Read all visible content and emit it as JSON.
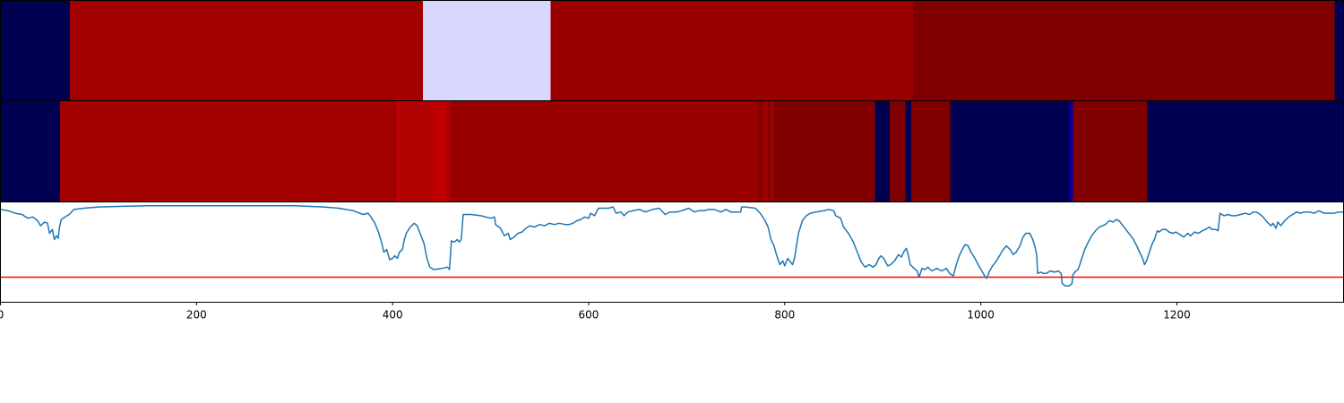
{
  "chart_data": {
    "type": "heatmap",
    "colors": {
      "navy": "#000050",
      "lavender": "#d8d8ff",
      "blue": "#0000a0",
      "red_bright": "#c00000",
      "red_light": "#b00000",
      "red": "#a30000",
      "red_mid": "#9a0000",
      "red_dark": "#800000",
      "line": "#1f77b4",
      "threshold": "#ff0000"
    },
    "x_axis": {
      "range": [
        0,
        1370
      ],
      "ticks": [
        0,
        200,
        400,
        600,
        800,
        1000,
        1200
      ],
      "tick_labels": [
        "0",
        "200",
        "400",
        "600",
        "800",
        "1000",
        "1200"
      ]
    },
    "band_top": {
      "segments": [
        {
          "start": 0,
          "end": 71,
          "color": "navy"
        },
        {
          "start": 71,
          "end": 431,
          "color": "red"
        },
        {
          "start": 431,
          "end": 561,
          "color": "lavender"
        },
        {
          "start": 561,
          "end": 931,
          "color": "red_mid"
        },
        {
          "start": 931,
          "end": 1361,
          "color": "red_dark"
        },
        {
          "start": 1361,
          "end": 1370,
          "color": "navy"
        }
      ]
    },
    "band_middle": {
      "segments": [
        {
          "start": 0,
          "end": 61,
          "color": "navy"
        },
        {
          "start": 61,
          "end": 401,
          "color": "red"
        },
        {
          "start": 401,
          "end": 404,
          "color": "red_mid"
        },
        {
          "start": 404,
          "end": 407,
          "color": "red_bright"
        },
        {
          "start": 407,
          "end": 441,
          "color": "red_light"
        },
        {
          "start": 441,
          "end": 455,
          "color": "red_bright"
        },
        {
          "start": 455,
          "end": 459,
          "color": "red_light"
        },
        {
          "start": 459,
          "end": 773,
          "color": "red_mid"
        },
        {
          "start": 773,
          "end": 777,
          "color": "red_dark"
        },
        {
          "start": 777,
          "end": 783,
          "color": "red_mid"
        },
        {
          "start": 783,
          "end": 785,
          "color": "red_dark"
        },
        {
          "start": 785,
          "end": 789,
          "color": "red_mid"
        },
        {
          "start": 789,
          "end": 892,
          "color": "red_dark"
        },
        {
          "start": 892,
          "end": 907,
          "color": "navy"
        },
        {
          "start": 907,
          "end": 923,
          "color": "red_dark"
        },
        {
          "start": 923,
          "end": 929,
          "color": "navy"
        },
        {
          "start": 929,
          "end": 969,
          "color": "red_dark"
        },
        {
          "start": 969,
          "end": 1090,
          "color": "navy"
        },
        {
          "start": 1090,
          "end": 1094,
          "color": "blue"
        },
        {
          "start": 1094,
          "end": 1170,
          "color": "red_dark"
        },
        {
          "start": 1170,
          "end": 1370,
          "color": "navy"
        }
      ]
    },
    "line_series": {
      "ylim": [
        -0.75,
        0.05
      ],
      "threshold": -0.55,
      "points": [
        [
          0,
          -0.01
        ],
        [
          8,
          -0.02
        ],
        [
          15,
          -0.04
        ],
        [
          22,
          -0.05
        ],
        [
          28,
          -0.08
        ],
        [
          33,
          -0.07
        ],
        [
          38,
          -0.1
        ],
        [
          41,
          -0.14
        ],
        [
          45,
          -0.11
        ],
        [
          48,
          -0.12
        ],
        [
          50,
          -0.2
        ],
        [
          53,
          -0.17
        ],
        [
          55,
          -0.25
        ],
        [
          57,
          -0.22
        ],
        [
          59,
          -0.24
        ],
        [
          60,
          -0.16
        ],
        [
          62,
          -0.09
        ],
        [
          66,
          -0.07
        ],
        [
          70,
          -0.05
        ],
        [
          75,
          -0.01
        ],
        [
          85,
          0.0
        ],
        [
          100,
          0.01
        ],
        [
          150,
          0.02
        ],
        [
          200,
          0.02
        ],
        [
          250,
          0.02
        ],
        [
          300,
          0.02
        ],
        [
          330,
          0.01
        ],
        [
          345,
          0.0
        ],
        [
          360,
          -0.02
        ],
        [
          370,
          -0.05
        ],
        [
          375,
          -0.04
        ],
        [
          378,
          -0.07
        ],
        [
          382,
          -0.12
        ],
        [
          386,
          -0.2
        ],
        [
          389,
          -0.28
        ],
        [
          391,
          -0.35
        ],
        [
          394,
          -0.33
        ],
        [
          397,
          -0.41
        ],
        [
          400,
          -0.4
        ],
        [
          402,
          -0.38
        ],
        [
          405,
          -0.4
        ],
        [
          407,
          -0.35
        ],
        [
          410,
          -0.33
        ],
        [
          412,
          -0.25
        ],
        [
          414,
          -0.2
        ],
        [
          418,
          -0.15
        ],
        [
          422,
          -0.12
        ],
        [
          425,
          -0.14
        ],
        [
          428,
          -0.2
        ],
        [
          432,
          -0.28
        ],
        [
          435,
          -0.4
        ],
        [
          438,
          -0.47
        ],
        [
          442,
          -0.49
        ],
        [
          450,
          -0.48
        ],
        [
          456,
          -0.47
        ],
        [
          458,
          -0.49
        ],
        [
          460,
          -0.26
        ],
        [
          463,
          -0.27
        ],
        [
          466,
          -0.25
        ],
        [
          468,
          -0.27
        ],
        [
          470,
          -0.25
        ],
        [
          472,
          -0.05
        ],
        [
          476,
          -0.05
        ],
        [
          480,
          -0.05
        ],
        [
          490,
          -0.06
        ],
        [
          500,
          -0.08
        ],
        [
          504,
          -0.07
        ],
        [
          505,
          -0.13
        ],
        [
          510,
          -0.16
        ],
        [
          514,
          -0.22
        ],
        [
          518,
          -0.2
        ],
        [
          520,
          -0.25
        ],
        [
          524,
          -0.23
        ],
        [
          528,
          -0.2
        ],
        [
          532,
          -0.19
        ],
        [
          536,
          -0.16
        ],
        [
          540,
          -0.14
        ],
        [
          545,
          -0.15
        ],
        [
          550,
          -0.13
        ],
        [
          555,
          -0.14
        ],
        [
          560,
          -0.12
        ],
        [
          565,
          -0.13
        ],
        [
          570,
          -0.12
        ],
        [
          576,
          -0.13
        ],
        [
          580,
          -0.13
        ],
        [
          584,
          -0.12
        ],
        [
          588,
          -0.1
        ],
        [
          592,
          -0.09
        ],
        [
          596,
          -0.07
        ],
        [
          600,
          -0.08
        ],
        [
          602,
          -0.04
        ],
        [
          606,
          -0.06
        ],
        [
          610,
          0.0
        ],
        [
          620,
          0.0
        ],
        [
          625,
          0.01
        ],
        [
          628,
          -0.04
        ],
        [
          633,
          -0.03
        ],
        [
          636,
          -0.06
        ],
        [
          640,
          -0.03
        ],
        [
          645,
          -0.02
        ],
        [
          652,
          -0.01
        ],
        [
          658,
          -0.03
        ],
        [
          665,
          -0.01
        ],
        [
          672,
          0.0
        ],
        [
          678,
          -0.05
        ],
        [
          683,
          -0.03
        ],
        [
          690,
          -0.03
        ],
        [
          695,
          -0.02
        ],
        [
          702,
          0.0
        ],
        [
          708,
          -0.03
        ],
        [
          712,
          -0.02
        ],
        [
          718,
          -0.02
        ],
        [
          722,
          -0.01
        ],
        [
          728,
          -0.01
        ],
        [
          735,
          -0.03
        ],
        [
          740,
          -0.01
        ],
        [
          745,
          -0.03
        ],
        [
          755,
          -0.03
        ],
        [
          756,
          0.01
        ],
        [
          760,
          0.01
        ],
        [
          770,
          0.0
        ],
        [
          775,
          -0.04
        ],
        [
          780,
          -0.1
        ],
        [
          783,
          -0.15
        ],
        [
          786,
          -0.25
        ],
        [
          789,
          -0.3
        ],
        [
          792,
          -0.38
        ],
        [
          795,
          -0.45
        ],
        [
          798,
          -0.42
        ],
        [
          800,
          -0.46
        ],
        [
          803,
          -0.4
        ],
        [
          806,
          -0.43
        ],
        [
          808,
          -0.45
        ],
        [
          810,
          -0.4
        ],
        [
          812,
          -0.3
        ],
        [
          814,
          -0.2
        ],
        [
          816,
          -0.15
        ],
        [
          818,
          -0.1
        ],
        [
          822,
          -0.06
        ],
        [
          826,
          -0.04
        ],
        [
          832,
          -0.03
        ],
        [
          840,
          -0.02
        ],
        [
          845,
          -0.01
        ],
        [
          850,
          -0.02
        ],
        [
          852,
          -0.06
        ],
        [
          857,
          -0.08
        ],
        [
          860,
          -0.15
        ],
        [
          865,
          -0.2
        ],
        [
          870,
          -0.27
        ],
        [
          874,
          -0.35
        ],
        [
          878,
          -0.43
        ],
        [
          882,
          -0.47
        ],
        [
          886,
          -0.45
        ],
        [
          890,
          -0.47
        ],
        [
          893,
          -0.45
        ],
        [
          896,
          -0.4
        ],
        [
          898,
          -0.38
        ],
        [
          901,
          -0.4
        ],
        [
          903,
          -0.43
        ],
        [
          905,
          -0.46
        ],
        [
          908,
          -0.45
        ],
        [
          912,
          -0.42
        ],
        [
          916,
          -0.37
        ],
        [
          919,
          -0.39
        ],
        [
          922,
          -0.34
        ],
        [
          924,
          -0.32
        ],
        [
          926,
          -0.37
        ],
        [
          928,
          -0.45
        ],
        [
          932,
          -0.48
        ],
        [
          935,
          -0.5
        ],
        [
          937,
          -0.55
        ],
        [
          940,
          -0.48
        ],
        [
          943,
          -0.49
        ],
        [
          946,
          -0.47
        ],
        [
          950,
          -0.5
        ],
        [
          955,
          -0.48
        ],
        [
          960,
          -0.5
        ],
        [
          965,
          -0.48
        ],
        [
          968,
          -0.52
        ],
        [
          972,
          -0.54
        ],
        [
          975,
          -0.45
        ],
        [
          978,
          -0.38
        ],
        [
          981,
          -0.33
        ],
        [
          984,
          -0.29
        ],
        [
          987,
          -0.3
        ],
        [
          990,
          -0.35
        ],
        [
          994,
          -0.4
        ],
        [
          998,
          -0.46
        ],
        [
          1001,
          -0.5
        ],
        [
          1004,
          -0.54
        ],
        [
          1006,
          -0.56
        ],
        [
          1009,
          -0.5
        ],
        [
          1012,
          -0.46
        ],
        [
          1016,
          -0.42
        ],
        [
          1019,
          -0.38
        ],
        [
          1022,
          -0.34
        ],
        [
          1026,
          -0.3
        ],
        [
          1030,
          -0.33
        ],
        [
          1033,
          -0.37
        ],
        [
          1036,
          -0.35
        ],
        [
          1040,
          -0.3
        ],
        [
          1043,
          -0.23
        ],
        [
          1046,
          -0.2
        ],
        [
          1050,
          -0.2
        ],
        [
          1053,
          -0.25
        ],
        [
          1055,
          -0.3
        ],
        [
          1057,
          -0.37
        ],
        [
          1058,
          -0.52
        ],
        [
          1061,
          -0.51
        ],
        [
          1064,
          -0.52
        ],
        [
          1067,
          -0.52
        ],
        [
          1071,
          -0.5
        ],
        [
          1075,
          -0.51
        ],
        [
          1079,
          -0.5
        ],
        [
          1082,
          -0.52
        ],
        [
          1083,
          -0.6
        ],
        [
          1086,
          -0.62
        ],
        [
          1090,
          -0.62
        ],
        [
          1093,
          -0.6
        ],
        [
          1094,
          -0.53
        ],
        [
          1097,
          -0.5
        ],
        [
          1099,
          -0.49
        ],
        [
          1101,
          -0.45
        ],
        [
          1103,
          -0.4
        ],
        [
          1106,
          -0.33
        ],
        [
          1109,
          -0.28
        ],
        [
          1113,
          -0.22
        ],
        [
          1117,
          -0.18
        ],
        [
          1121,
          -0.15
        ],
        [
          1124,
          -0.14
        ],
        [
          1127,
          -0.13
        ],
        [
          1131,
          -0.1
        ],
        [
          1135,
          -0.11
        ],
        [
          1138,
          -0.09
        ],
        [
          1141,
          -0.1
        ],
        [
          1145,
          -0.14
        ],
        [
          1148,
          -0.17
        ],
        [
          1152,
          -0.21
        ],
        [
          1155,
          -0.24
        ],
        [
          1159,
          -0.3
        ],
        [
          1162,
          -0.35
        ],
        [
          1165,
          -0.4
        ],
        [
          1167,
          -0.45
        ],
        [
          1169,
          -0.42
        ],
        [
          1172,
          -0.35
        ],
        [
          1175,
          -0.28
        ],
        [
          1177,
          -0.25
        ],
        [
          1180,
          -0.18
        ],
        [
          1182,
          -0.19
        ],
        [
          1185,
          -0.17
        ],
        [
          1189,
          -0.17
        ],
        [
          1192,
          -0.19
        ],
        [
          1196,
          -0.2
        ],
        [
          1199,
          -0.19
        ],
        [
          1203,
          -0.21
        ],
        [
          1207,
          -0.23
        ],
        [
          1211,
          -0.2
        ],
        [
          1214,
          -0.22
        ],
        [
          1218,
          -0.19
        ],
        [
          1222,
          -0.2
        ],
        [
          1226,
          -0.18
        ],
        [
          1229,
          -0.17
        ],
        [
          1233,
          -0.15
        ],
        [
          1236,
          -0.17
        ],
        [
          1240,
          -0.17
        ],
        [
          1242,
          -0.18
        ],
        [
          1244,
          -0.04
        ],
        [
          1248,
          -0.06
        ],
        [
          1252,
          -0.05
        ],
        [
          1256,
          -0.06
        ],
        [
          1260,
          -0.06
        ],
        [
          1265,
          -0.05
        ],
        [
          1270,
          -0.04
        ],
        [
          1274,
          -0.05
        ],
        [
          1278,
          -0.03
        ],
        [
          1281,
          -0.03
        ],
        [
          1285,
          -0.05
        ],
        [
          1288,
          -0.07
        ],
        [
          1292,
          -0.11
        ],
        [
          1296,
          -0.14
        ],
        [
          1298,
          -0.12
        ],
        [
          1301,
          -0.16
        ],
        [
          1303,
          -0.11
        ],
        [
          1306,
          -0.14
        ],
        [
          1310,
          -0.1
        ],
        [
          1314,
          -0.07
        ],
        [
          1318,
          -0.05
        ],
        [
          1322,
          -0.03
        ],
        [
          1326,
          -0.04
        ],
        [
          1330,
          -0.03
        ],
        [
          1335,
          -0.03
        ],
        [
          1340,
          -0.04
        ],
        [
          1345,
          -0.02
        ],
        [
          1350,
          -0.04
        ],
        [
          1355,
          -0.04
        ],
        [
          1360,
          -0.04
        ],
        [
          1365,
          -0.03
        ],
        [
          1370,
          -0.03
        ]
      ]
    }
  }
}
